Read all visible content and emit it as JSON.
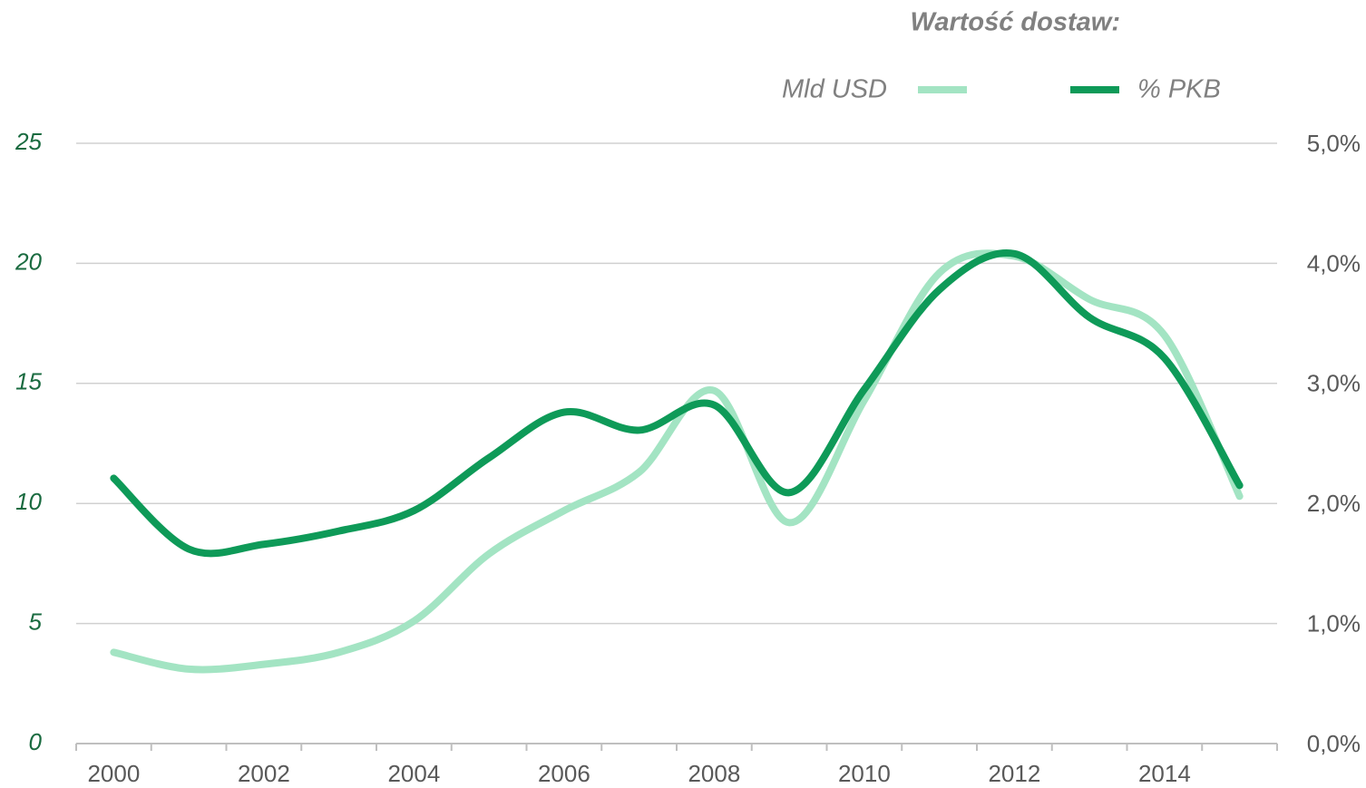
{
  "chart_data": {
    "type": "line",
    "title": "Wartość dostaw:",
    "categories": [
      "2000",
      null,
      "2002",
      null,
      "2004",
      null,
      "2006",
      null,
      "2008",
      null,
      "2010",
      null,
      "2012",
      null,
      "2014",
      null
    ],
    "series": [
      {
        "name": "Mld USD",
        "color": "#a3e4c3",
        "axis": "y",
        "values": [
          3.8,
          3.1,
          3.3,
          3.8,
          5.1,
          7.9,
          9.7,
          11.3,
          14.7,
          9.2,
          14.3,
          19.6,
          20.3,
          18.5,
          17.0,
          10.3
        ]
      },
      {
        "name": "% PKB",
        "color": "#0e9a58",
        "axis": "y2",
        "values": [
          2.21,
          1.62,
          1.66,
          1.77,
          1.94,
          2.38,
          2.76,
          2.61,
          2.82,
          2.09,
          2.95,
          3.78,
          4.08,
          3.55,
          3.21,
          2.15
        ]
      }
    ],
    "ylim": [
      0,
      25
    ],
    "yticks": [
      0,
      5,
      10,
      15,
      20,
      25
    ],
    "y2lim": [
      0,
      5
    ],
    "y2ticks": [
      {
        "value": 0,
        "label": "0,0%"
      },
      {
        "value": 1,
        "label": "1,0%"
      },
      {
        "value": 2,
        "label": "2,0%"
      },
      {
        "value": 3,
        "label": "3,0%"
      },
      {
        "value": 4,
        "label": "4,0%"
      },
      {
        "value": 5,
        "label": "5,0%"
      }
    ],
    "grid": true
  }
}
